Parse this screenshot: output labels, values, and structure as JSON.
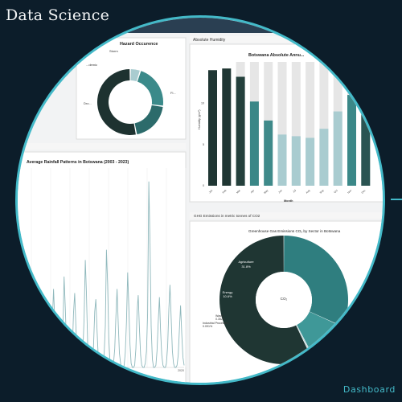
{
  "page": {
    "title": "Data Science",
    "footer_label": "Dashboard"
  },
  "colors": {
    "background": "#0c1d2a",
    "accent": "#43b9c8",
    "dark": "#1f3633",
    "teal": "#2f7e7f",
    "light_teal": "#a9ccd0",
    "bar_bg": "#e6e6e6"
  },
  "panels": {
    "hazard": {
      "title": "Hazard Occurence",
      "labels": [
        "Storm",
        "...demic",
        "Dro...",
        "Fl..."
      ]
    },
    "humidity": {
      "header": "Absolute Humidity",
      "title": "Botswana Absolute Annu...",
      "ylabel": "Humidity (g/m³)",
      "xlabel": "Month"
    },
    "rainfall": {
      "title": "Average Rainfall Patterns in Botswana (2003 - 2023)"
    },
    "ghg": {
      "header": "GHG Emissions in metric tonnes of CO2",
      "title": "Greenhouse Gas Emissions CO₂ by Sector in Botswana"
    }
  },
  "chart_data": [
    {
      "type": "pie",
      "title": "Hazard Occurence",
      "labels": [
        "Storm",
        "...demic",
        "Dro...",
        "Fl..."
      ],
      "values": [
        5,
        22,
        20,
        53
      ]
    },
    {
      "type": "bar",
      "title": "Botswana Absolute Annu...",
      "xlabel": "Month",
      "ylabel": "Humidity (g/m³)",
      "ylim": [
        0,
        15
      ],
      "yticks": [
        0,
        5,
        10
      ],
      "categories": [
        "Jan",
        "Feb",
        "Mar",
        "Apr",
        "May",
        "Jun",
        "Jul",
        "Aug",
        "Sep",
        "Oct",
        "Nov",
        "Dec"
      ],
      "series": [
        {
          "values": [
            14,
            14.2,
            13.2,
            10.2,
            7.9,
            6.2,
            6,
            5.8,
            6.9,
            9,
            11,
            13
          ]
        }
      ],
      "max_values": [
        14,
        14.2,
        15,
        15,
        15,
        15,
        15,
        15,
        15,
        15,
        15,
        15
      ]
    },
    {
      "type": "line",
      "title": "Average Rainfall Patterns in Botswana (2003 - 2023)",
      "xticks": [
        "2020"
      ],
      "series": [
        {
          "values": [
            1,
            6,
            18,
            28,
            14,
            4,
            1,
            0,
            0,
            2,
            8,
            22,
            38,
            24,
            8,
            2,
            0,
            0,
            1,
            6,
            19,
            44,
            29,
            11,
            3,
            0,
            0,
            2,
            9,
            26,
            36,
            20,
            6,
            1,
            0,
            0,
            1,
            8,
            24,
            52,
            36,
            12,
            3,
            0,
            0,
            2,
            10,
            27,
            33,
            18,
            5,
            1,
            0,
            0,
            1,
            6,
            20,
            57,
            40,
            14,
            3,
            0,
            0,
            2,
            9,
            24,
            38,
            22,
            7,
            2,
            0,
            0,
            1,
            7,
            22,
            46,
            30,
            11,
            2,
            0,
            0,
            1,
            9,
            27,
            35,
            19,
            6,
            1,
            0,
            0,
            2,
            8,
            26,
            90,
            60,
            20,
            4,
            0,
            0,
            1,
            8,
            22,
            34,
            18,
            6,
            1,
            0,
            0,
            2,
            10,
            28,
            40,
            24,
            8,
            2,
            0,
            0,
            1,
            6,
            18,
            30,
            16,
            5,
            1
          ]
        }
      ]
    },
    {
      "type": "pie",
      "title": "Greenhouse Gas Emissions CO₂ by Sector in Botswana",
      "center_label": "CO₂",
      "labels": [
        "Agriculture",
        "Energy",
        "Waste",
        "Industrial Processes",
        "Land..."
      ],
      "value_labels": [
        "31.8%",
        "10.6%",
        "0.352%",
        "0.091%",
        ""
      ],
      "values": [
        31.8,
        10.6,
        0.352,
        0.091,
        57.16
      ]
    }
  ]
}
